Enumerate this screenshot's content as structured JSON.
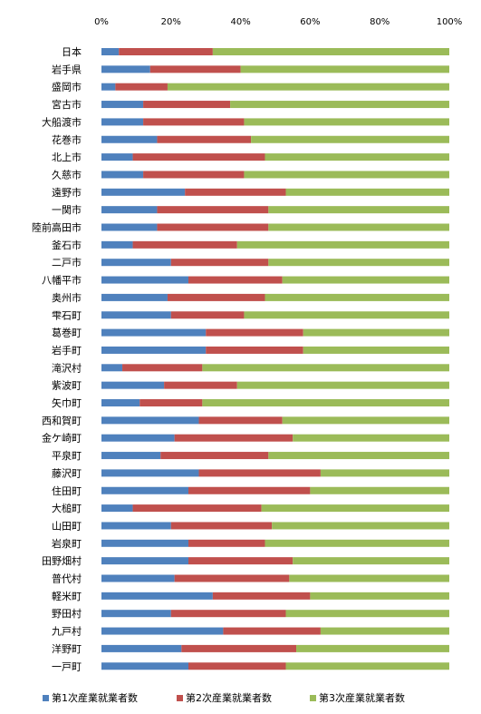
{
  "chart_data": {
    "type": "bar",
    "orientation": "horizontal",
    "stacked": "percent",
    "xlim": [
      0,
      100
    ],
    "x_ticks": [
      "0%",
      "20%",
      "40%",
      "60%",
      "80%",
      "100%"
    ],
    "grid": false,
    "legend_position": "bottom",
    "categories": [
      "日本",
      "岩手県",
      "盛岡市",
      "宮古市",
      "大船渡市",
      "花巻市",
      "北上市",
      "久慈市",
      "遠野市",
      "一関市",
      "陸前高田市",
      "釜石市",
      "二戸市",
      "八幡平市",
      "奥州市",
      "雫石町",
      "葛巻町",
      "岩手町",
      "滝沢村",
      "紫波町",
      "矢巾町",
      "西和賀町",
      "金ケ崎町",
      "平泉町",
      "藤沢町",
      "住田町",
      "大槌町",
      "山田町",
      "岩泉町",
      "田野畑村",
      "普代村",
      "軽米町",
      "野田村",
      "九戸村",
      "洋野町",
      "一戸町"
    ],
    "series": [
      {
        "name": "第1次産業就業者数",
        "color": "#4F81BD",
        "values": [
          5,
          14,
          4,
          12,
          12,
          16,
          9,
          12,
          24,
          16,
          16,
          9,
          20,
          25,
          19,
          20,
          30,
          30,
          6,
          18,
          11,
          28,
          21,
          17,
          28,
          25,
          9,
          20,
          25,
          25,
          21,
          32,
          20,
          35,
          23,
          25
        ]
      },
      {
        "name": "第2次産業就業者数",
        "color": "#C0504D",
        "values": [
          27,
          26,
          15,
          25,
          29,
          27,
          38,
          29,
          29,
          32,
          32,
          30,
          28,
          27,
          28,
          21,
          28,
          28,
          23,
          21,
          18,
          24,
          34,
          31,
          35,
          35,
          37,
          29,
          22,
          30,
          33,
          28,
          33,
          28,
          33,
          28
        ]
      },
      {
        "name": "第3次産業就業者数",
        "color": "#9BBB59",
        "values": [
          68,
          60,
          81,
          63,
          59,
          57,
          53,
          59,
          47,
          52,
          52,
          61,
          52,
          48,
          53,
          59,
          42,
          42,
          71,
          61,
          71,
          48,
          45,
          52,
          37,
          40,
          54,
          51,
          53,
          45,
          46,
          40,
          47,
          37,
          44,
          47
        ]
      }
    ]
  }
}
